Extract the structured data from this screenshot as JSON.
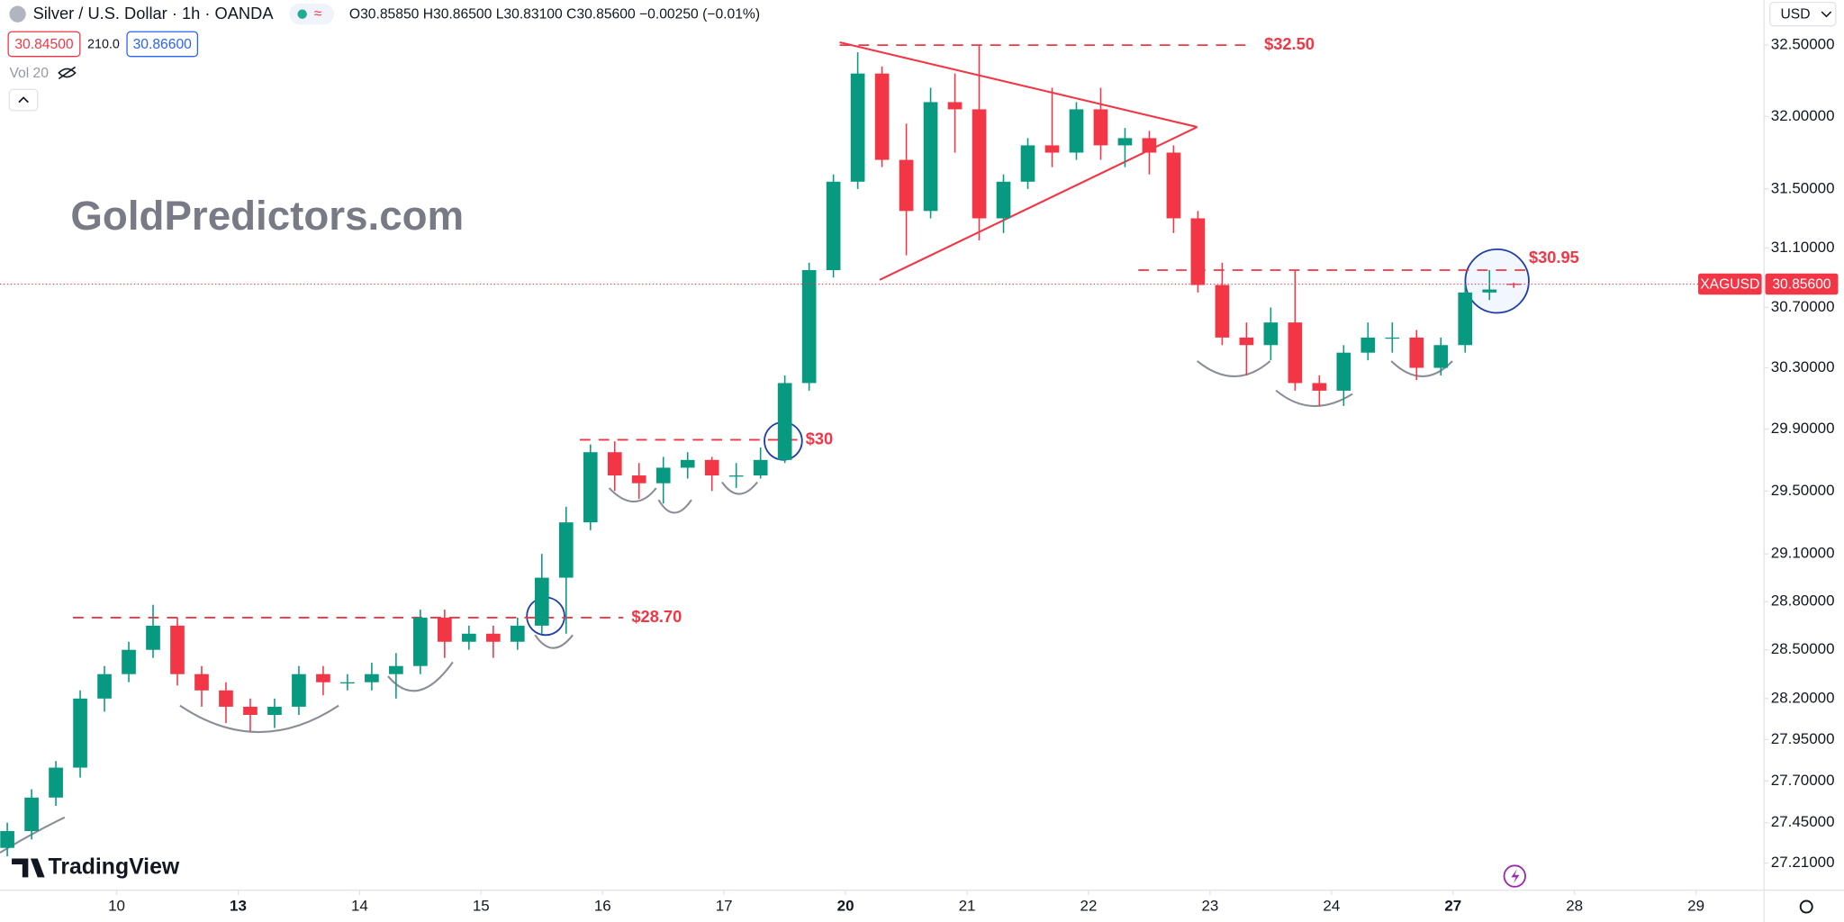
{
  "header": {
    "symbol": "Silver / U.S. Dollar · 1h · OANDA",
    "ohlc": "O30.85850 H30.86500 L30.83100 C30.85600 −0.00250 (−0.01%)",
    "sell": "30.84500",
    "spread": "210.0",
    "buy": "30.86600",
    "volume": "Vol 20",
    "currency": "USD",
    "watermark": "GoldPredictors.com",
    "brand": "TradingView",
    "price_symbol": "XAGUSD",
    "price_value": "30.85600"
  },
  "chart_data": {
    "type": "candlestick",
    "log_scale": true,
    "grid": false,
    "up_color": "#089981",
    "down_color": "#f23645",
    "x": [
      -0.9,
      -0.7,
      -0.5,
      -0.3,
      -0.1,
      0.1,
      0.3,
      0.5,
      0.7,
      0.9,
      1.1,
      1.3,
      1.5,
      1.7,
      1.9,
      2.1,
      2.3,
      2.5,
      2.7,
      2.9,
      3.1,
      3.3,
      3.5,
      3.7,
      3.9,
      4.1,
      4.3,
      4.5,
      4.7,
      4.9,
      5.1,
      5.3,
      5.5,
      5.7,
      5.9,
      6.1,
      6.3,
      6.5,
      6.7,
      6.9,
      7.1,
      7.3,
      7.5,
      7.7,
      7.9,
      8.1,
      8.3,
      8.5,
      8.7,
      8.9,
      9.1,
      9.3,
      9.5,
      9.7,
      9.9,
      10.1,
      10.3,
      10.5,
      10.7,
      10.9,
      11.1,
      11.3,
      11.5
    ],
    "open": [
      27.3,
      27.4,
      27.6,
      27.78,
      28.2,
      28.35,
      28.5,
      28.65,
      28.35,
      28.25,
      28.15,
      28.1,
      28.15,
      28.35,
      28.3,
      28.3,
      28.35,
      28.4,
      28.7,
      28.55,
      28.6,
      28.55,
      28.65,
      28.95,
      29.3,
      29.75,
      29.6,
      29.55,
      29.65,
      29.7,
      29.6,
      29.6,
      29.7,
      30.2,
      30.95,
      31.55,
      32.3,
      31.7,
      31.35,
      32.1,
      32.05,
      31.3,
      31.55,
      31.8,
      31.75,
      32.05,
      31.8,
      31.85,
      31.75,
      31.3,
      30.85,
      30.5,
      30.45,
      30.6,
      30.2,
      30.15,
      30.4,
      30.5,
      30.5,
      30.3,
      30.45,
      30.8,
      30.8585
    ],
    "high": [
      27.45,
      27.65,
      27.82,
      28.25,
      28.4,
      28.55,
      28.78,
      28.7,
      28.4,
      28.3,
      28.2,
      28.2,
      28.4,
      28.4,
      28.35,
      28.42,
      28.48,
      28.75,
      28.75,
      28.65,
      28.65,
      28.7,
      29.1,
      29.4,
      29.8,
      29.82,
      29.68,
      29.72,
      29.75,
      29.72,
      29.68,
      29.78,
      30.25,
      31.0,
      31.6,
      32.45,
      32.35,
      31.95,
      32.2,
      32.3,
      32.5,
      31.6,
      31.85,
      32.2,
      32.1,
      32.2,
      31.92,
      31.9,
      31.8,
      31.35,
      31.0,
      30.6,
      30.7,
      30.95,
      30.25,
      30.45,
      30.6,
      30.6,
      30.55,
      30.5,
      30.85,
      30.95,
      30.865
    ],
    "low": [
      27.25,
      27.35,
      27.55,
      27.72,
      28.12,
      28.3,
      28.45,
      28.28,
      28.15,
      28.05,
      28.0,
      28.02,
      28.1,
      28.22,
      28.25,
      28.25,
      28.2,
      28.35,
      28.45,
      28.5,
      28.45,
      28.5,
      28.6,
      28.6,
      29.25,
      29.5,
      29.45,
      29.42,
      29.58,
      29.5,
      29.52,
      29.58,
      29.68,
      30.15,
      30.9,
      31.5,
      31.65,
      31.05,
      31.3,
      31.75,
      31.15,
      31.2,
      31.5,
      31.65,
      31.7,
      31.7,
      31.65,
      31.6,
      31.2,
      30.8,
      30.45,
      30.25,
      30.35,
      30.15,
      30.05,
      30.05,
      30.35,
      30.4,
      30.22,
      30.25,
      30.4,
      30.75,
      30.831
    ],
    "close": [
      27.4,
      27.6,
      27.78,
      28.2,
      28.35,
      28.5,
      28.65,
      28.35,
      28.25,
      28.15,
      28.1,
      28.15,
      28.35,
      28.3,
      28.3,
      28.35,
      28.4,
      28.7,
      28.55,
      28.6,
      28.55,
      28.65,
      28.95,
      29.3,
      29.75,
      29.6,
      29.55,
      29.65,
      29.7,
      29.6,
      29.6,
      29.7,
      30.2,
      30.95,
      31.55,
      32.3,
      31.7,
      31.35,
      32.1,
      32.05,
      31.3,
      31.55,
      31.8,
      31.75,
      32.05,
      31.8,
      31.85,
      31.75,
      31.3,
      30.85,
      30.5,
      30.45,
      30.6,
      30.2,
      30.15,
      30.4,
      30.5,
      30.5,
      30.3,
      30.45,
      30.8,
      30.82,
      30.856
    ],
    "xlim": [
      -0.96,
      13.56
    ],
    "ylim": [
      27.05,
      32.82
    ],
    "xticks": [
      {
        "value": 0,
        "label": "10"
      },
      {
        "value": 1,
        "label": "13"
      },
      {
        "value": 2,
        "label": "14"
      },
      {
        "value": 3,
        "label": "15"
      },
      {
        "value": 4,
        "label": "16"
      },
      {
        "value": 5,
        "label": "17"
      },
      {
        "value": 6,
        "label": "20"
      },
      {
        "value": 7,
        "label": "21"
      },
      {
        "value": 8,
        "label": "22"
      },
      {
        "value": 9,
        "label": "23"
      },
      {
        "value": 10,
        "label": "24"
      },
      {
        "value": 11,
        "label": "27"
      },
      {
        "value": 12,
        "label": "28"
      },
      {
        "value": 13,
        "label": "29"
      }
    ],
    "yticks": [
      {
        "value": 32.5,
        "label": "32.50000"
      },
      {
        "value": 32,
        "label": "32.00000"
      },
      {
        "value": 31.5,
        "label": "31.50000"
      },
      {
        "value": 31.1,
        "label": "31.10000"
      },
      {
        "value": 30.7,
        "label": "30.70000"
      },
      {
        "value": 30.3,
        "label": "30.30000"
      },
      {
        "value": 29.9,
        "label": "29.90000"
      },
      {
        "value": 29.5,
        "label": "29.50000"
      },
      {
        "value": 29.1,
        "label": "29.10000"
      },
      {
        "value": 28.8,
        "label": "28.80000"
      },
      {
        "value": 28.5,
        "label": "28.50000"
      },
      {
        "value": 28.2,
        "label": "28.20000"
      },
      {
        "value": 27.95,
        "label": "27.95000"
      },
      {
        "value": 27.7,
        "label": "27.70000"
      },
      {
        "value": 27.45,
        "label": "27.45000"
      },
      {
        "value": 27.21,
        "label": "27.21000"
      }
    ],
    "annotations": [
      {
        "text": "$32.50",
        "value": 32.5
      },
      {
        "text": "$30",
        "value": 29.83
      },
      {
        "text": "$28.70",
        "value": 28.7
      },
      {
        "text": "$30.95",
        "value": 30.95
      }
    ]
  }
}
